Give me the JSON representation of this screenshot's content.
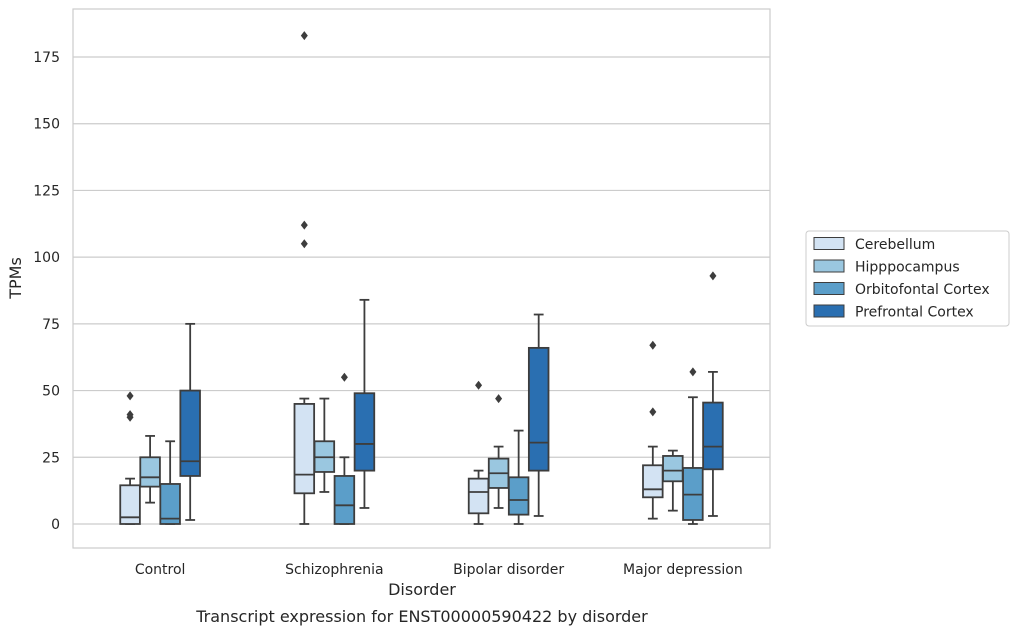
{
  "caption": "Transcript expression for ENST00000590422 by disorder",
  "chart_data": {
    "type": "box",
    "xlabel": "Disorder",
    "ylabel": "TPMs",
    "ylim": [
      -9,
      193
    ],
    "yticks": [
      0,
      25,
      50,
      75,
      100,
      125,
      150,
      175
    ],
    "grid": "horizontal",
    "legend_position": "right",
    "categories": [
      "Control",
      "Schizophrenia",
      "Bipolar disorder",
      "Major depression"
    ],
    "series": [
      {
        "name": "Cerebellum",
        "color": "#d3e3f3",
        "boxes": [
          {
            "min": 0,
            "q1": 0,
            "median": 2.5,
            "q3": 14.5,
            "max": 17,
            "outliers": [
              48,
              41,
              40
            ]
          },
          {
            "min": 0,
            "q1": 11.5,
            "median": 18.5,
            "q3": 45,
            "max": 47,
            "outliers": [
              183,
              112,
              105
            ]
          },
          {
            "min": 0,
            "q1": 4,
            "median": 12,
            "q3": 17,
            "max": 20,
            "outliers": [
              52
            ]
          },
          {
            "min": 2,
            "q1": 10,
            "median": 13,
            "q3": 22,
            "max": 29,
            "outliers": [
              67,
              42
            ]
          }
        ]
      },
      {
        "name": "Hipppocampus",
        "color": "#9ac7e0",
        "boxes": [
          {
            "min": 8,
            "q1": 14,
            "median": 17.5,
            "q3": 25,
            "max": 33,
            "outliers": []
          },
          {
            "min": 12,
            "q1": 19.5,
            "median": 25,
            "q3": 31,
            "max": 47,
            "outliers": []
          },
          {
            "min": 6,
            "q1": 13.5,
            "median": 19,
            "q3": 24.5,
            "max": 29,
            "outliers": [
              47
            ]
          },
          {
            "min": 5,
            "q1": 16,
            "median": 20,
            "q3": 25.5,
            "max": 27.5,
            "outliers": []
          }
        ]
      },
      {
        "name": "Orbitofontal Cortex",
        "color": "#5b9ec9",
        "boxes": [
          {
            "min": 0,
            "q1": 0,
            "median": 2,
            "q3": 15,
            "max": 31,
            "outliers": []
          },
          {
            "min": 0,
            "q1": 0,
            "median": 7,
            "q3": 18,
            "max": 25,
            "outliers": [
              55
            ]
          },
          {
            "min": 0,
            "q1": 3.5,
            "median": 9,
            "q3": 17.5,
            "max": 35,
            "outliers": []
          },
          {
            "min": 0,
            "q1": 1.5,
            "median": 11,
            "q3": 21,
            "max": 47.5,
            "outliers": [
              57
            ]
          }
        ]
      },
      {
        "name": "Prefrontal Cortex",
        "color": "#2a6fb1",
        "boxes": [
          {
            "min": 1.5,
            "q1": 18,
            "median": 23.5,
            "q3": 50,
            "max": 75,
            "outliers": []
          },
          {
            "min": 6,
            "q1": 20,
            "median": 30,
            "q3": 49,
            "max": 84,
            "outliers": []
          },
          {
            "min": 3,
            "q1": 20,
            "median": 30.5,
            "q3": 66,
            "max": 78.5,
            "outliers": []
          },
          {
            "min": 3,
            "q1": 20.5,
            "median": 29,
            "q3": 45.5,
            "max": 57,
            "outliers": [
              93
            ]
          }
        ]
      }
    ]
  }
}
